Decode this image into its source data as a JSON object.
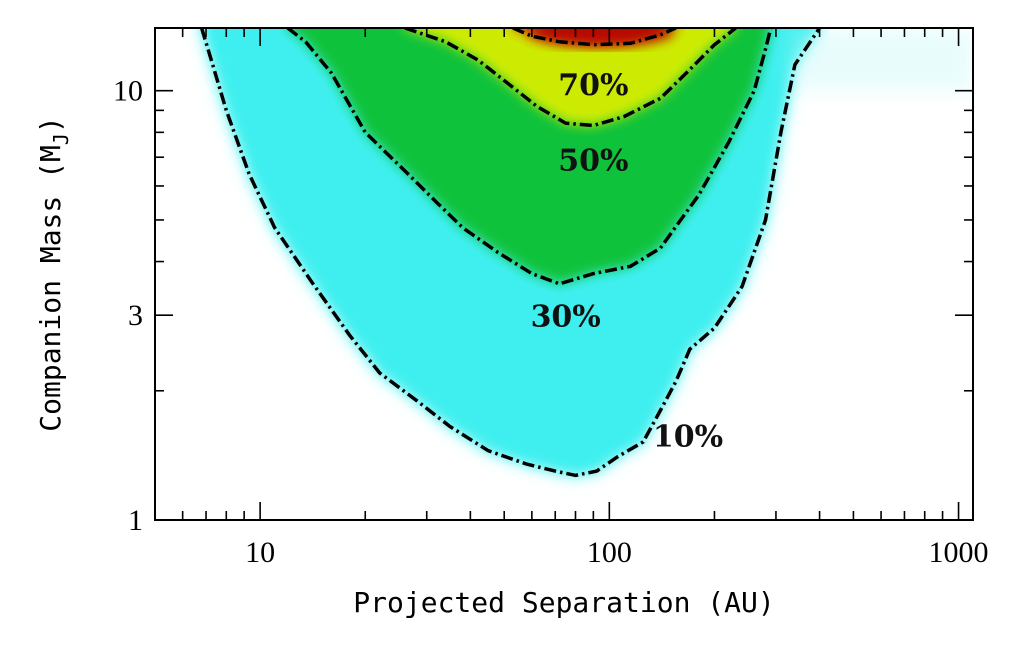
{
  "chart_data": {
    "type": "heatmap",
    "title": "",
    "xlabel": "Projected Separation (AU)",
    "ylabel": "Companion Mass (M",
    "ylabel_subscript": "J",
    "ylabel_close": ")",
    "xscale": "log",
    "yscale": "log",
    "xlim": [
      5,
      1100
    ],
    "ylim": [
      1,
      14
    ],
    "x_ticks": [
      {
        "value": 10,
        "label": "10"
      },
      {
        "value": 100,
        "label": "100"
      },
      {
        "value": 1000,
        "label": "1000"
      }
    ],
    "y_ticks": [
      {
        "value": 1,
        "label": "1"
      },
      {
        "value": 3,
        "label": "3"
      },
      {
        "value": 10,
        "label": "10"
      }
    ],
    "colorscale": [
      "#ffffff",
      "#22f0f0",
      "#00c800",
      "#f0f000",
      "#f08000",
      "#c80000"
    ],
    "contours": [
      {
        "level": "10%",
        "label": "10%",
        "label_at": [
          168,
          1.55
        ],
        "points": [
          [
            6.8,
            14
          ],
          [
            7.2,
            12
          ],
          [
            8,
            9
          ],
          [
            9.3,
            6.4
          ],
          [
            11,
            4.8
          ],
          [
            14,
            3.6
          ],
          [
            18,
            2.7
          ],
          [
            22,
            2.2
          ],
          [
            28,
            1.9
          ],
          [
            35,
            1.65
          ],
          [
            45,
            1.45
          ],
          [
            58,
            1.35
          ],
          [
            70,
            1.3
          ],
          [
            80,
            1.27
          ],
          [
            92,
            1.3
          ],
          [
            105,
            1.4
          ],
          [
            125,
            1.52
          ],
          [
            140,
            1.8
          ],
          [
            155,
            2.1
          ],
          [
            170,
            2.5
          ],
          [
            200,
            2.8
          ],
          [
            240,
            3.5
          ],
          [
            280,
            5
          ],
          [
            310,
            8
          ],
          [
            340,
            11.5
          ],
          [
            400,
            14
          ]
        ]
      },
      {
        "level": "30%",
        "label": "30%",
        "label_at": [
          75,
          2.95
        ],
        "points": [
          [
            12,
            14
          ],
          [
            13.5,
            13
          ],
          [
            16,
            11
          ],
          [
            20,
            8
          ],
          [
            26,
            6.5
          ],
          [
            32,
            5.5
          ],
          [
            38,
            4.8
          ],
          [
            48,
            4.2
          ],
          [
            60,
            3.75
          ],
          [
            72,
            3.55
          ],
          [
            90,
            3.75
          ],
          [
            115,
            3.9
          ],
          [
            140,
            4.3
          ],
          [
            160,
            5
          ],
          [
            180,
            5.7
          ],
          [
            220,
            7.6
          ],
          [
            260,
            10
          ],
          [
            280,
            12.5
          ],
          [
            290,
            14
          ]
        ]
      },
      {
        "level": "50%",
        "label": "50%",
        "label_at": [
          90,
          6.8
        ],
        "points": [
          [
            26,
            14
          ],
          [
            34,
            13
          ],
          [
            42,
            11.8
          ],
          [
            52,
            10.3
          ],
          [
            62,
            9.2
          ],
          [
            75,
            8.4
          ],
          [
            90,
            8.3
          ],
          [
            110,
            8.7
          ],
          [
            140,
            9.6
          ],
          [
            170,
            11.2
          ],
          [
            200,
            12.8
          ],
          [
            230,
            14
          ]
        ]
      },
      {
        "level": "70%",
        "label": "70%",
        "label_at": [
          90,
          10.2
        ],
        "points": [
          [
            53,
            14
          ],
          [
            60,
            13.4
          ],
          [
            72,
            13
          ],
          [
            90,
            12.8
          ],
          [
            115,
            12.9
          ],
          [
            140,
            13.5
          ],
          [
            155,
            14
          ]
        ]
      }
    ]
  }
}
